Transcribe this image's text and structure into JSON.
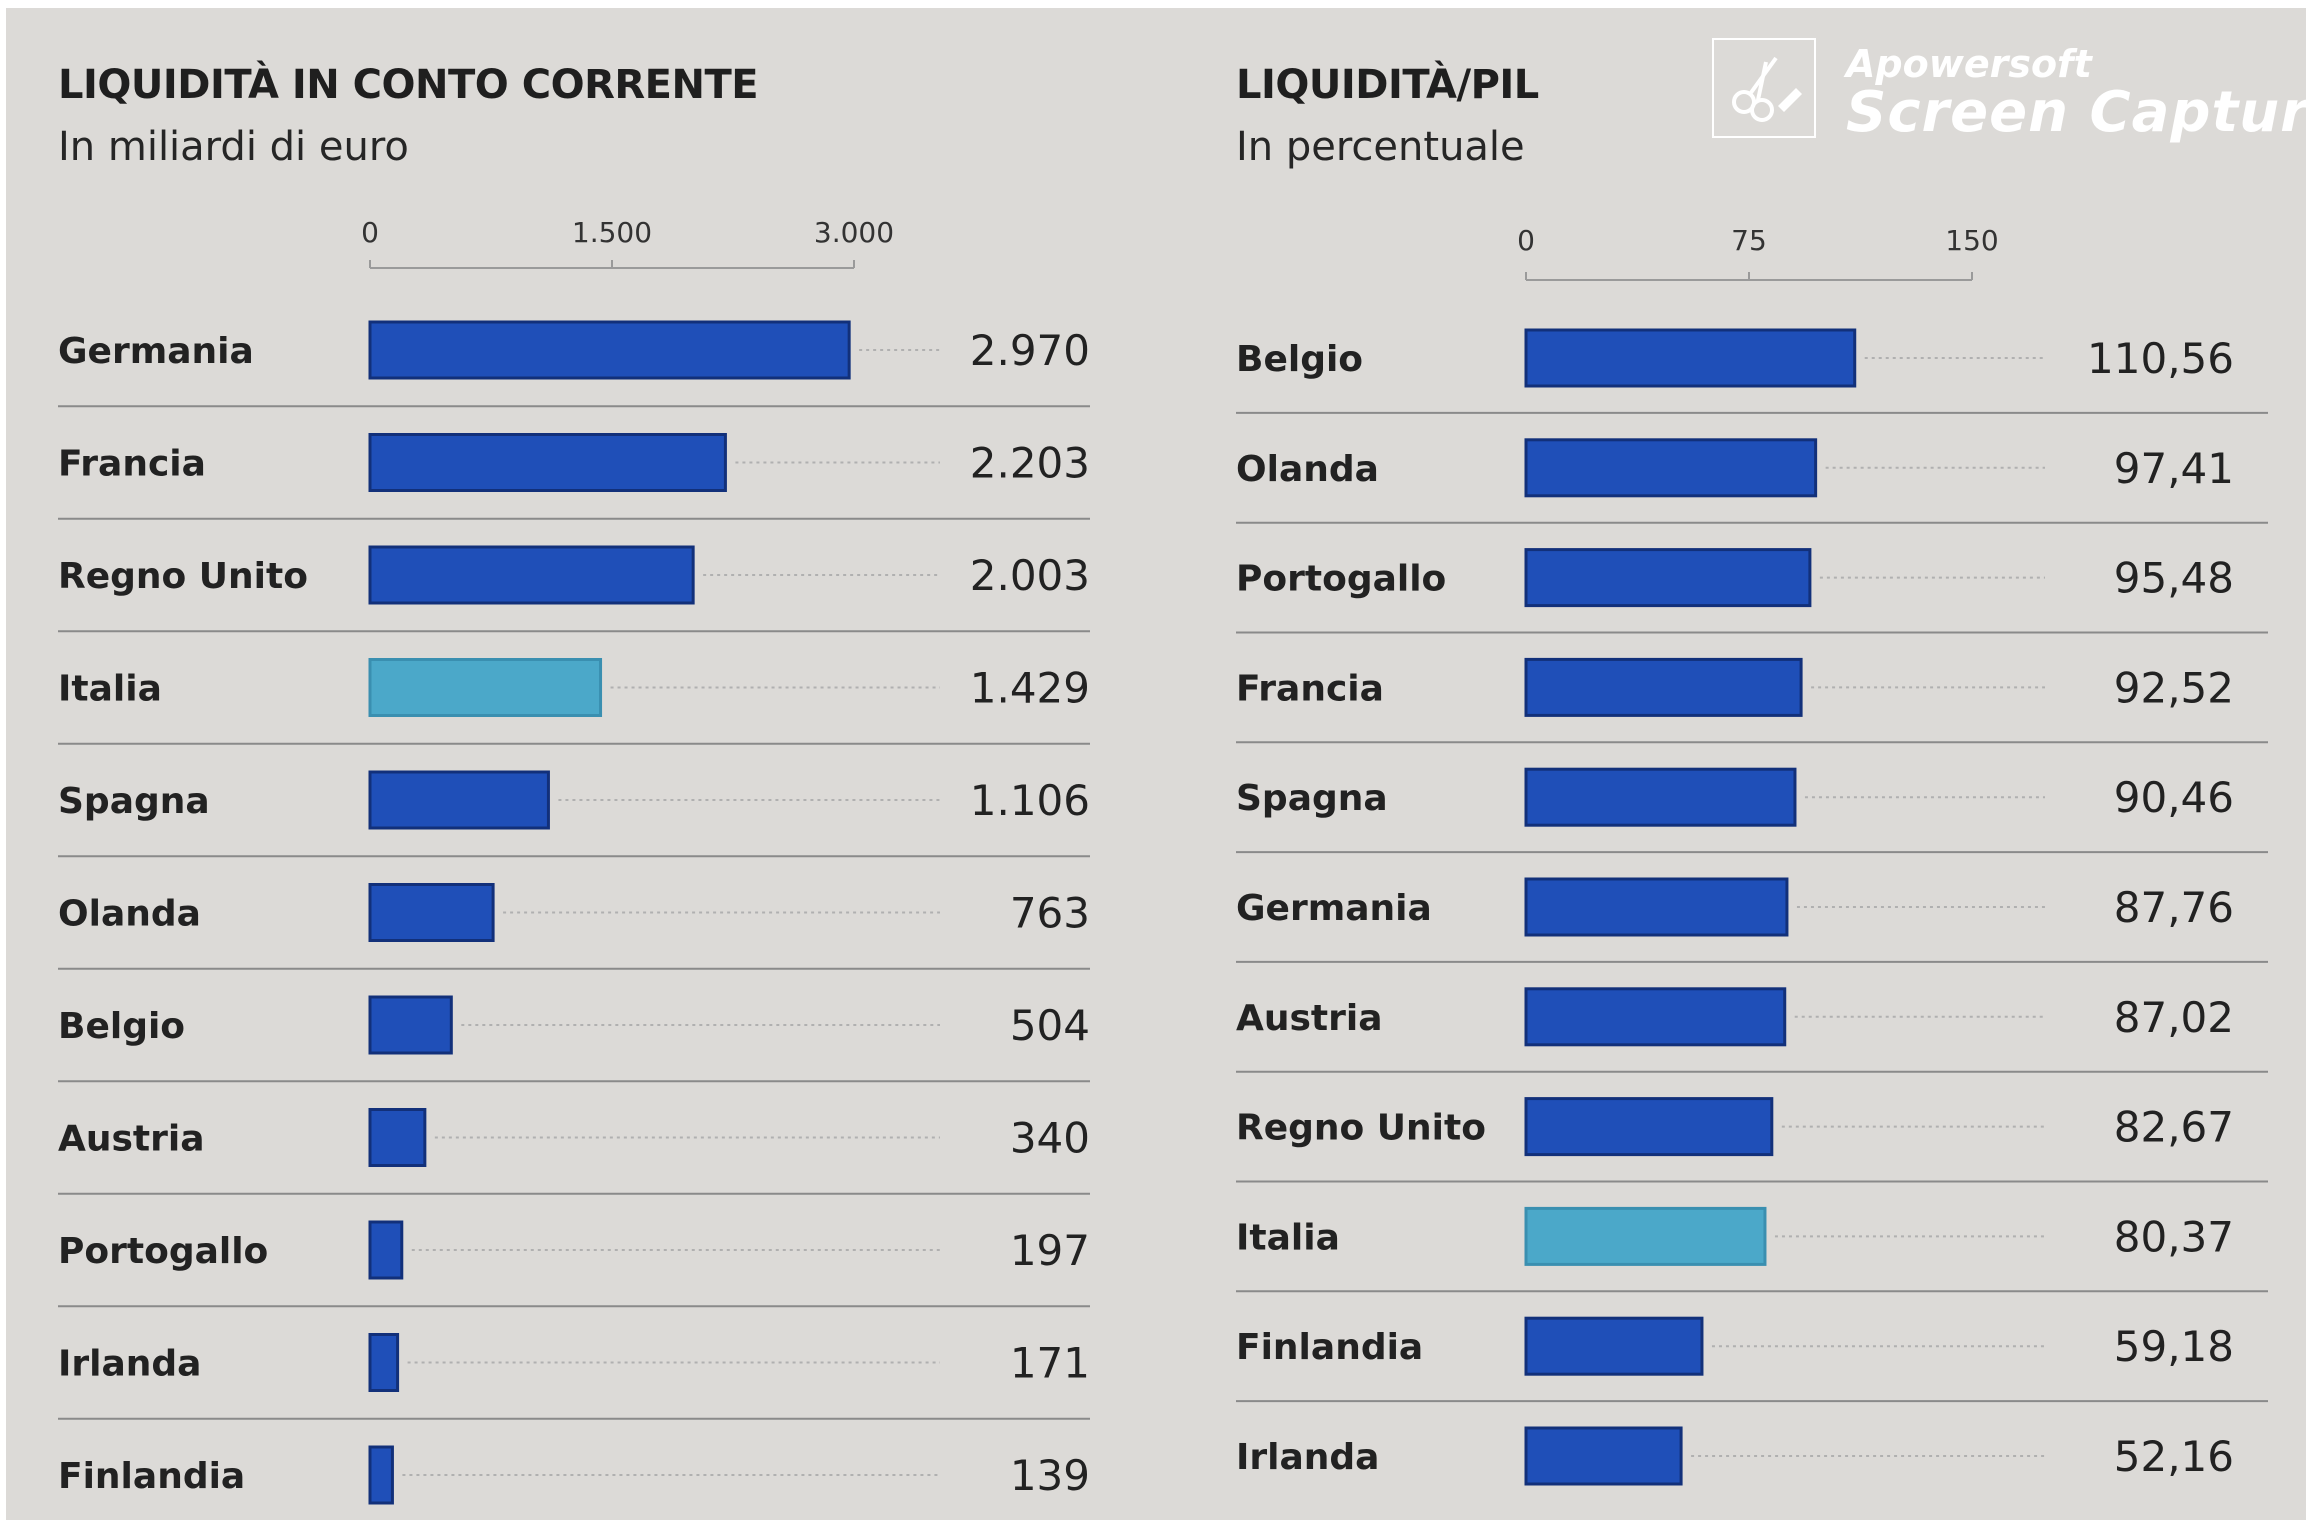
{
  "chart_data": [
    {
      "type": "bar",
      "orientation": "horizontal",
      "title": "LIQUIDITÀ IN CONTO CORRENTE",
      "subtitle": "In miliardi di euro",
      "ticks": [
        "0",
        "1.500",
        "3.000"
      ],
      "tick_values": [
        0,
        1500,
        3000
      ],
      "xlim": [
        0,
        3000
      ],
      "categories": [
        "Germania",
        "Francia",
        "Regno Unito",
        "Italia",
        "Spagna",
        "Olanda",
        "Belgio",
        "Austria",
        "Portogallo",
        "Irlanda",
        "Finlandia"
      ],
      "values": [
        2970,
        2203,
        2003,
        1429,
        1106,
        763,
        504,
        340,
        197,
        171,
        139
      ],
      "value_labels": [
        "2.970",
        "2.203",
        "2.003",
        "1.429",
        "1.106",
        "763",
        "504",
        "340",
        "197",
        "171",
        "139"
      ],
      "highlight": "Italia"
    },
    {
      "type": "bar",
      "orientation": "horizontal",
      "title": "LIQUIDITÀ/PIL",
      "subtitle": "In percentuale",
      "ticks": [
        "0",
        "75",
        "150"
      ],
      "tick_values": [
        0,
        75,
        150
      ],
      "xlim": [
        0,
        150
      ],
      "categories": [
        "Belgio",
        "Olanda",
        "Portogallo",
        "Francia",
        "Spagna",
        "Germania",
        "Austria",
        "Regno Unito",
        "Italia",
        "Finlandia",
        "Irlanda"
      ],
      "values": [
        110.56,
        97.41,
        95.48,
        92.52,
        90.46,
        87.76,
        87.02,
        82.67,
        80.37,
        59.18,
        52.16
      ],
      "value_labels": [
        "110,56",
        "97,41",
        "95,48",
        "92,52",
        "90,46",
        "87,76",
        "87,02",
        "82,67",
        "80,37",
        "59,18",
        "52,16"
      ],
      "highlight": "Italia"
    }
  ],
  "colors": {
    "bar": "#1f4fb8",
    "bar_edge": "#12307a",
    "highlight": "#4ba8c9",
    "highlight_edge": "#3a8fb0",
    "separator": "#8a8a8a",
    "leader": "#b0b0b0"
  },
  "watermark": {
    "brand": "Apowersoft",
    "product": "Screen Capture",
    "icon": "scissors-icon"
  }
}
